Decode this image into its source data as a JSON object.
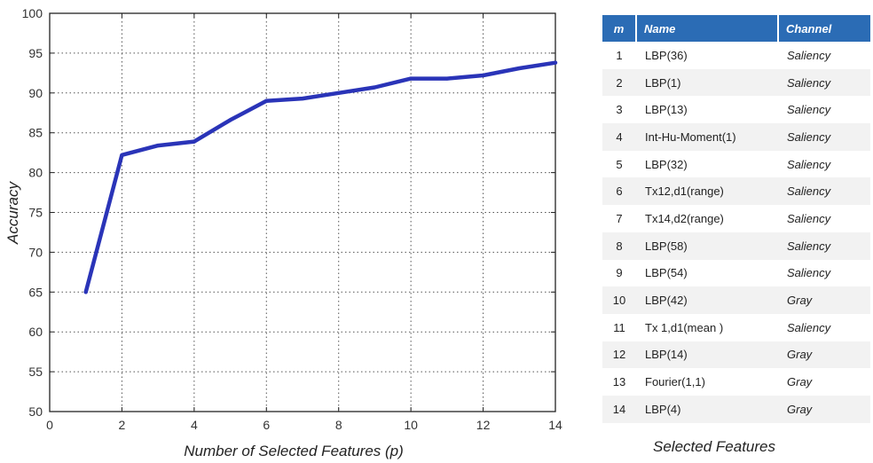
{
  "chart_data": {
    "type": "line",
    "title": "",
    "xlabel": "Number of Selected Features (p)",
    "ylabel": "Accuracy",
    "xlim": [
      0,
      14
    ],
    "ylim": [
      50,
      100
    ],
    "xticks": [
      0,
      2,
      4,
      6,
      8,
      10,
      12,
      14
    ],
    "yticks": [
      50,
      55,
      60,
      65,
      70,
      75,
      80,
      85,
      90,
      95,
      100
    ],
    "grid": true,
    "series": [
      {
        "color": "#2a34b8",
        "x": [
          1,
          2,
          3,
          4,
          5,
          6,
          7,
          8,
          9,
          10,
          11,
          12,
          13,
          14
        ],
        "y": [
          65.0,
          82.2,
          83.4,
          83.9,
          86.6,
          89.0,
          89.3,
          90.0,
          90.7,
          91.8,
          91.8,
          92.2,
          93.1,
          93.8
        ]
      }
    ]
  },
  "table": {
    "headers": {
      "m": "m",
      "name": "Name",
      "channel": "Channel"
    },
    "rows": [
      {
        "m": "1",
        "name": "LBP(36)",
        "channel": "Saliency"
      },
      {
        "m": "2",
        "name": "LBP(1)",
        "channel": "Saliency"
      },
      {
        "m": "3",
        "name": "LBP(13)",
        "channel": "Saliency"
      },
      {
        "m": "4",
        "name": "Int-Hu-Moment(1)",
        "channel": "Saliency"
      },
      {
        "m": "5",
        "name": "LBP(32)",
        "channel": "Saliency"
      },
      {
        "m": "6",
        "name": "Tx12,d1(range)",
        "channel": "Saliency"
      },
      {
        "m": "7",
        "name": "Tx14,d2(range)",
        "channel": "Saliency"
      },
      {
        "m": "8",
        "name": "LBP(58)",
        "channel": "Saliency"
      },
      {
        "m": "9",
        "name": "LBP(54)",
        "channel": "Saliency"
      },
      {
        "m": "10",
        "name": "LBP(42)",
        "channel": "Gray"
      },
      {
        "m": "11",
        "name": "Tx 1,d1(mean )",
        "channel": "Saliency"
      },
      {
        "m": "12",
        "name": "LBP(14)",
        "channel": "Gray"
      },
      {
        "m": "13",
        "name": "Fourier(1,1)",
        "channel": "Gray"
      },
      {
        "m": "14",
        "name": "LBP(4)",
        "channel": "Gray"
      }
    ],
    "caption": "Selected Features"
  }
}
